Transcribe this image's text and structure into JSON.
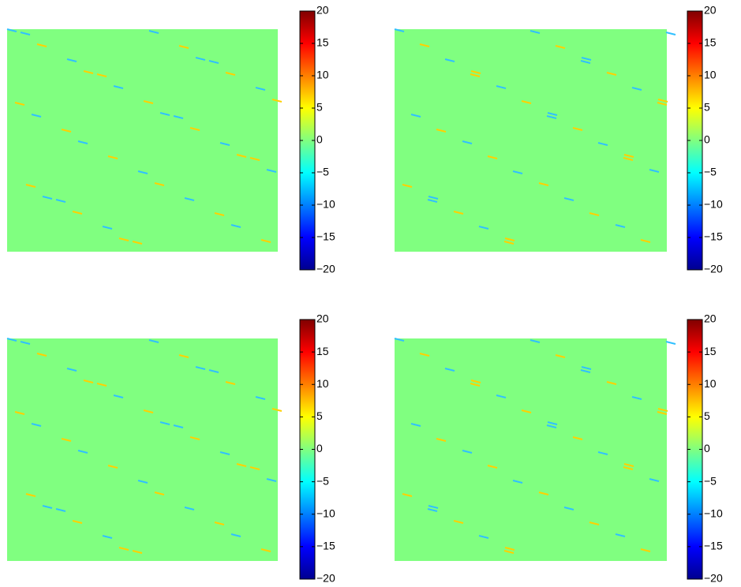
{
  "chart_data": [
    {
      "type": "image",
      "colormap": "jet",
      "clim": [
        -20,
        20
      ],
      "cticks": [
        {
          "value": -20,
          "label": "−20"
        },
        {
          "value": -15,
          "label": "−15"
        },
        {
          "value": -10,
          "label": "−10"
        },
        {
          "value": -5,
          "label": "−5"
        },
        0,
        5,
        10,
        15,
        20
      ]
    },
    {
      "type": "image",
      "colormap": "jet",
      "clim": [
        -20,
        20
      ],
      "cticks": [
        {
          "value": -20,
          "label": "−20"
        },
        {
          "value": -15,
          "label": "−15"
        },
        {
          "value": -10,
          "label": "−10"
        },
        {
          "value": -5,
          "label": "−5"
        },
        0,
        5,
        10,
        15,
        20
      ]
    },
    {
      "type": "image",
      "colormap": "jet",
      "clim": [
        -20,
        20
      ],
      "cticks": [
        {
          "value": -20,
          "label": "−20"
        },
        {
          "value": -15,
          "label": "−15"
        },
        {
          "value": -10,
          "label": "−10"
        },
        {
          "value": -5,
          "label": "−5"
        },
        0,
        5,
        10,
        15,
        20
      ]
    },
    {
      "type": "image",
      "colormap": "jet",
      "clim": [
        -20,
        20
      ],
      "cticks": [
        {
          "value": -20,
          "label": "−20"
        },
        {
          "value": -15,
          "label": "−15"
        },
        {
          "value": -10,
          "label": "−10"
        },
        {
          "value": -5,
          "label": "−5"
        },
        0,
        5,
        10,
        15,
        20
      ]
    }
  ]
}
